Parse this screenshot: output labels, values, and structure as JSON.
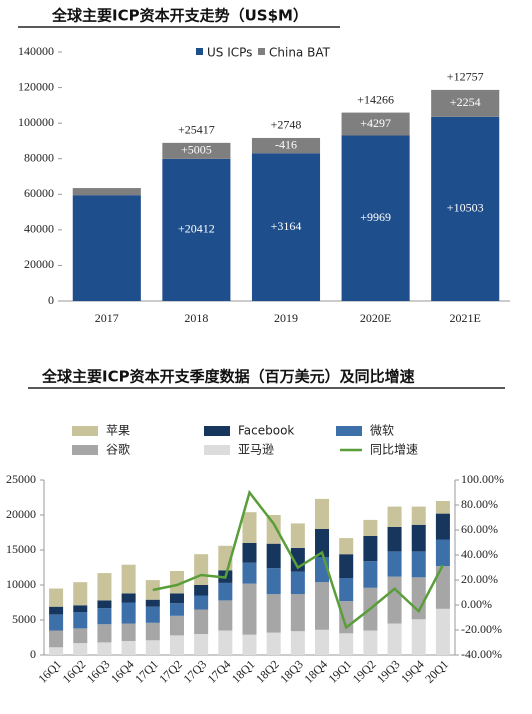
{
  "chart_data": [
    {
      "type": "bar",
      "stacked": true,
      "title": "全球主要ICP资本开支走势（US$M）",
      "categories": [
        "2017",
        "2018",
        "2019",
        "2020E",
        "2021E"
      ],
      "series": [
        {
          "name": "US ICPs",
          "color": "#1f4e8c",
          "values": [
            59500,
            79912,
            83076,
            93045,
            103548
          ],
          "change_labels": [
            null,
            "+20412",
            "+3164",
            "+9969",
            "+10503"
          ]
        },
        {
          "name": "China BAT",
          "color": "#7f7f7f",
          "values": [
            4000,
            9005,
            8589,
            12886,
            15140
          ],
          "change_labels": [
            null,
            "+5005",
            "-416",
            "+4297",
            "+2254"
          ]
        }
      ],
      "total_change_labels": [
        null,
        "+25417",
        "+2748",
        "+14266",
        "+12757"
      ],
      "ylim": [
        0,
        140000
      ],
      "yticks": [
        0,
        20000,
        40000,
        60000,
        80000,
        100000,
        120000,
        140000
      ],
      "grid": false,
      "legend": "top"
    },
    {
      "type": "bar",
      "stacked": true,
      "title": "全球主要ICP资本开支季度数据（百万美元）及同比增速",
      "categories": [
        "16Q1",
        "16Q2",
        "16Q3",
        "16Q4",
        "17Q1",
        "17Q2",
        "17Q3",
        "17Q4",
        "18Q1",
        "18Q2",
        "18Q3",
        "18Q4",
        "19Q1",
        "19Q2",
        "19Q3",
        "19Q4",
        "20Q1"
      ],
      "series": [
        {
          "name": "亚马逊",
          "color": "#dcdcdc",
          "values": [
            1100,
            1700,
            1800,
            2000,
            2100,
            2800,
            3000,
            3500,
            2900,
            3200,
            3400,
            3600,
            3100,
            3500,
            4500,
            5100,
            6600
          ]
        },
        {
          "name": "谷歌",
          "color": "#a6a6a6",
          "values": [
            2400,
            2100,
            2600,
            2500,
            2500,
            2800,
            3500,
            4300,
            7300,
            5500,
            5300,
            6800,
            4600,
            6100,
            6700,
            6000,
            6100
          ]
        },
        {
          "name": "微软",
          "color": "#3d6fa8",
          "values": [
            2300,
            2300,
            2300,
            3000,
            2300,
            1800,
            2000,
            2500,
            3000,
            3700,
            3200,
            3600,
            3300,
            3800,
            3600,
            3700,
            3800
          ]
        },
        {
          "name": "Facebook",
          "color": "#17365d",
          "values": [
            1100,
            1000,
            1100,
            1300,
            1000,
            1400,
            1500,
            1800,
            2800,
            3500,
            3400,
            4000,
            3400,
            3600,
            3500,
            3800,
            3700
          ]
        },
        {
          "name": "苹果",
          "color": "#c8c39b",
          "values": [
            2600,
            3300,
            3900,
            4100,
            2800,
            3200,
            4400,
            3500,
            4400,
            4100,
            3500,
            4300,
            2300,
            2300,
            2900,
            2600,
            1800
          ]
        },
        {
          "name": "同比增速",
          "color": "#5a9e3a",
          "type": "line",
          "axis": "y2",
          "values": [
            null,
            null,
            null,
            null,
            12,
            16,
            24,
            22,
            90,
            65,
            30,
            42,
            -18,
            -3,
            13,
            -5,
            32
          ]
        }
      ],
      "legend_order": [
        "苹果",
        "Facebook",
        "微软",
        "谷歌",
        "亚马逊",
        "同比增速"
      ],
      "ylim": [
        0,
        25000
      ],
      "yticks": [
        0,
        5000,
        10000,
        15000,
        20000,
        25000
      ],
      "y2lim": [
        -40,
        100
      ],
      "y2ticks": [
        {
          "value": -40,
          "label": "-40.00%"
        },
        {
          "value": -20,
          "label": "-20.00%"
        },
        {
          "value": 0,
          "label": "0.00%"
        },
        {
          "value": 20,
          "label": "20.00%"
        },
        {
          "value": 40,
          "label": "40.00%"
        },
        {
          "value": 60,
          "label": "60.00%"
        },
        {
          "value": 80,
          "label": "80.00%"
        },
        {
          "value": 100,
          "label": "100.00%"
        }
      ],
      "grid": false,
      "legend": "top"
    }
  ]
}
